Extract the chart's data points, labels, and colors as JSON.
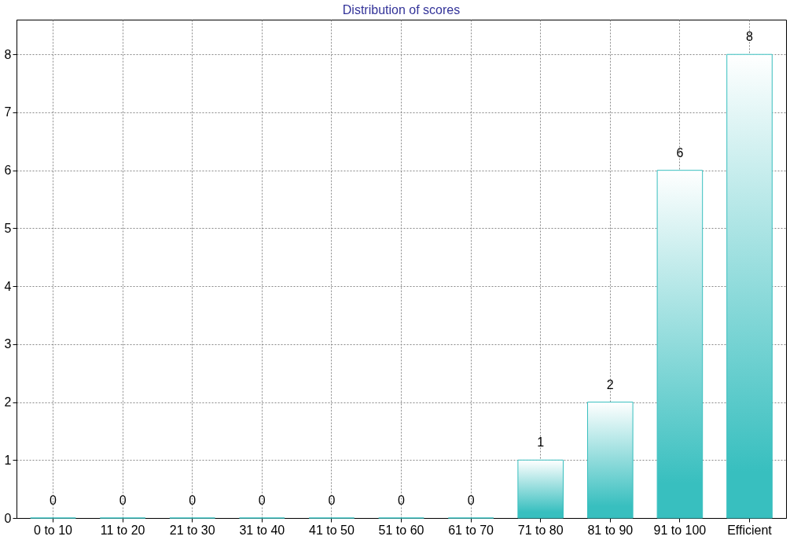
{
  "chart_data": {
    "type": "bar",
    "title": "Distribution of scores",
    "categories": [
      "0 to 10",
      "11 to 20",
      "21 to 30",
      "31 to 40",
      "41 to 50",
      "51 to 60",
      "61 to 70",
      "71 to 80",
      "81 to 90",
      "91 to 100",
      "Efficient"
    ],
    "values": [
      0,
      0,
      0,
      0,
      0,
      0,
      0,
      1,
      2,
      6,
      8
    ],
    "color": "#38bfbf",
    "ylim": [
      0,
      8.6
    ],
    "yticks": [
      0,
      1,
      2,
      3,
      4,
      5,
      6,
      7,
      8
    ],
    "grid": true,
    "data_labels": true
  }
}
